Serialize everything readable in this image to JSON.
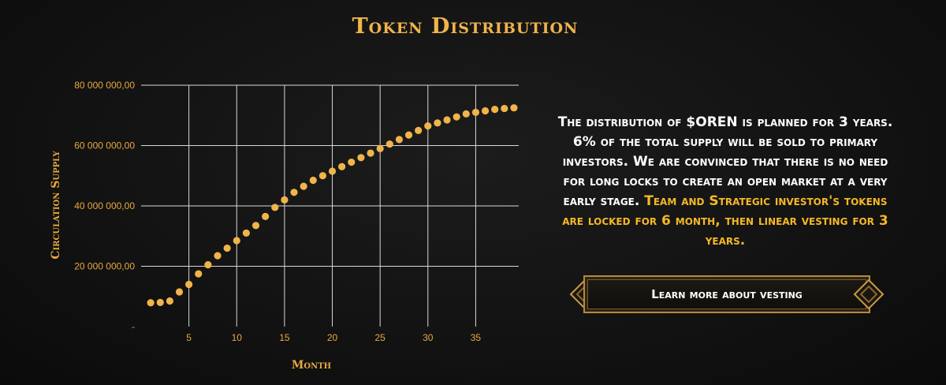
{
  "title": "Token Distribution",
  "chart_data": {
    "type": "scatter",
    "xlabel": "Month",
    "ylabel": "Circulation Supply",
    "x_ticks": [
      5,
      10,
      15,
      20,
      25,
      30,
      35
    ],
    "y_ticks": [
      0,
      20000000,
      40000000,
      60000000,
      80000000
    ],
    "y_tick_labels": [
      "-",
      "20 000 000,00",
      "40 000 000,00",
      "60 000 000,00",
      "80 000 000,00"
    ],
    "xlim": [
      0,
      39.5
    ],
    "ylim": [
      0,
      80000000
    ],
    "grid": true,
    "color": "#f0b44a",
    "x": [
      1,
      2,
      3,
      4,
      5,
      6,
      7,
      8,
      9,
      10,
      11,
      12,
      13,
      14,
      15,
      16,
      17,
      18,
      19,
      20,
      21,
      22,
      23,
      24,
      25,
      26,
      27,
      28,
      29,
      30,
      31,
      32,
      33,
      34,
      35,
      36,
      37,
      38,
      39
    ],
    "y": [
      7900000,
      8000000,
      8500000,
      11500000,
      14000000,
      17500000,
      20500000,
      23500000,
      26000000,
      28500000,
      31000000,
      33500000,
      36500000,
      39500000,
      42000000,
      44500000,
      46500000,
      48500000,
      50000000,
      51500000,
      53000000,
      54500000,
      56000000,
      57500000,
      59000000,
      60500000,
      62000000,
      63500000,
      65000000,
      66500000,
      67500000,
      68500000,
      69500000,
      70500000,
      71000000,
      71500000,
      72000000,
      72300000,
      72500000
    ]
  },
  "description": {
    "part1": "The distribution of $OREN is planned for 3 years. 6% of the total supply will be sold to primary investors. We are convinced that there is no need for long locks to create an open market at a very early stage.",
    "part2": "Team and Strategic investor's tokens are locked for 6 month, then linear vesting for 3 years."
  },
  "button": {
    "label": "Learn more about vesting"
  }
}
